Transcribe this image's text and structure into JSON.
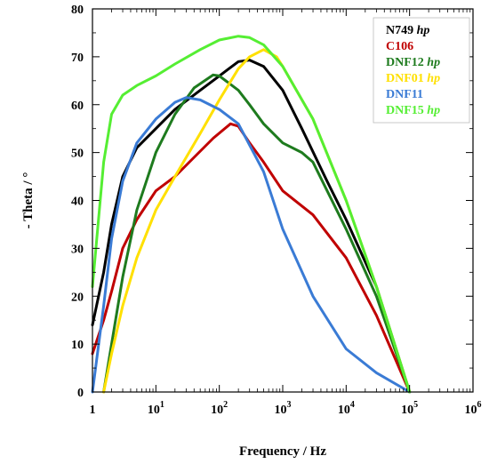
{
  "chart_data": {
    "type": "line",
    "title": "",
    "xlabel": "Frequency / Hz",
    "ylabel": "- Theta / °",
    "xscale": "log",
    "xlim": [
      1,
      1000000
    ],
    "ylim": [
      0,
      80
    ],
    "grid": false,
    "legend_position": "top-right",
    "x_ticks": [
      {
        "value": 1,
        "base": "1",
        "exp": ""
      },
      {
        "value": 10,
        "base": "10",
        "exp": "1"
      },
      {
        "value": 100,
        "base": "10",
        "exp": "2"
      },
      {
        "value": 1000,
        "base": "10",
        "exp": "3"
      },
      {
        "value": 10000,
        "base": "10",
        "exp": "4"
      },
      {
        "value": 100000,
        "base": "10",
        "exp": "5"
      },
      {
        "value": 1000000,
        "base": "10",
        "exp": "6"
      }
    ],
    "y_ticks": [
      "0",
      "10",
      "20",
      "30",
      "40",
      "50",
      "60",
      "70",
      "80"
    ],
    "series": [
      {
        "name": "N749",
        "suffix": "hp",
        "color": "#000000",
        "x": [
          1,
          1.5,
          2,
          3,
          5,
          10,
          20,
          50,
          100,
          200,
          300,
          500,
          1000,
          2000,
          5000,
          10000,
          30000,
          100000
        ],
        "y": [
          14,
          25,
          35,
          45,
          51,
          55,
          59,
          63,
          66,
          69,
          69.3,
          68,
          63,
          55,
          44,
          36,
          22,
          0
        ]
      },
      {
        "name": "C106",
        "suffix": "",
        "color": "#c00000",
        "x": [
          1,
          1.5,
          2,
          3,
          5,
          10,
          20,
          40,
          80,
          150,
          200,
          300,
          500,
          1000,
          3000,
          10000,
          30000,
          100000
        ],
        "y": [
          8,
          15,
          21,
          30,
          36,
          42,
          45,
          49,
          53,
          56,
          55.5,
          52,
          48,
          42,
          37,
          28,
          16,
          0
        ]
      },
      {
        "name": "DNF12",
        "suffix": "hp",
        "color": "#1e7b1e",
        "x": [
          1.5,
          2,
          3,
          5,
          10,
          20,
          40,
          80,
          100,
          200,
          300,
          500,
          1000,
          2000,
          3000,
          10000,
          30000,
          100000
        ],
        "y": [
          0,
          10,
          24,
          38,
          50,
          58,
          63.5,
          66.2,
          66,
          63,
          60,
          56,
          52,
          50,
          48,
          34,
          20,
          0
        ]
      },
      {
        "name": "DNF01",
        "suffix": "hp",
        "color": "#ffe000",
        "x": [
          1.5,
          2,
          3,
          5,
          10,
          20,
          50,
          100,
          200,
          300,
          500,
          800,
          1000,
          3000,
          10000,
          30000,
          100000
        ],
        "y": [
          0,
          8,
          18,
          28,
          38,
          45,
          54,
          61,
          67.5,
          70,
          71.5,
          70,
          68,
          57,
          40,
          22,
          0
        ]
      },
      {
        "name": "DNF11",
        "suffix": "",
        "color": "#3a7bd5",
        "x": [
          1,
          1.5,
          2,
          3,
          5,
          10,
          20,
          30,
          50,
          100,
          200,
          500,
          1000,
          3000,
          10000,
          30000,
          100000
        ],
        "y": [
          0,
          18,
          32,
          44,
          52,
          57,
          60.5,
          61.5,
          61,
          59,
          56,
          46,
          34,
          20,
          9,
          4,
          0
        ]
      },
      {
        "name": "DNF15",
        "suffix": "hp",
        "color": "#55ee33",
        "x": [
          1,
          1.5,
          2,
          3,
          5,
          10,
          20,
          50,
          100,
          200,
          300,
          500,
          1000,
          3000,
          10000,
          30000,
          100000
        ],
        "y": [
          22,
          48,
          58,
          62,
          64,
          66,
          68.5,
          71.5,
          73.5,
          74.3,
          74,
          72.5,
          68,
          57,
          40,
          22,
          0
        ]
      }
    ]
  }
}
